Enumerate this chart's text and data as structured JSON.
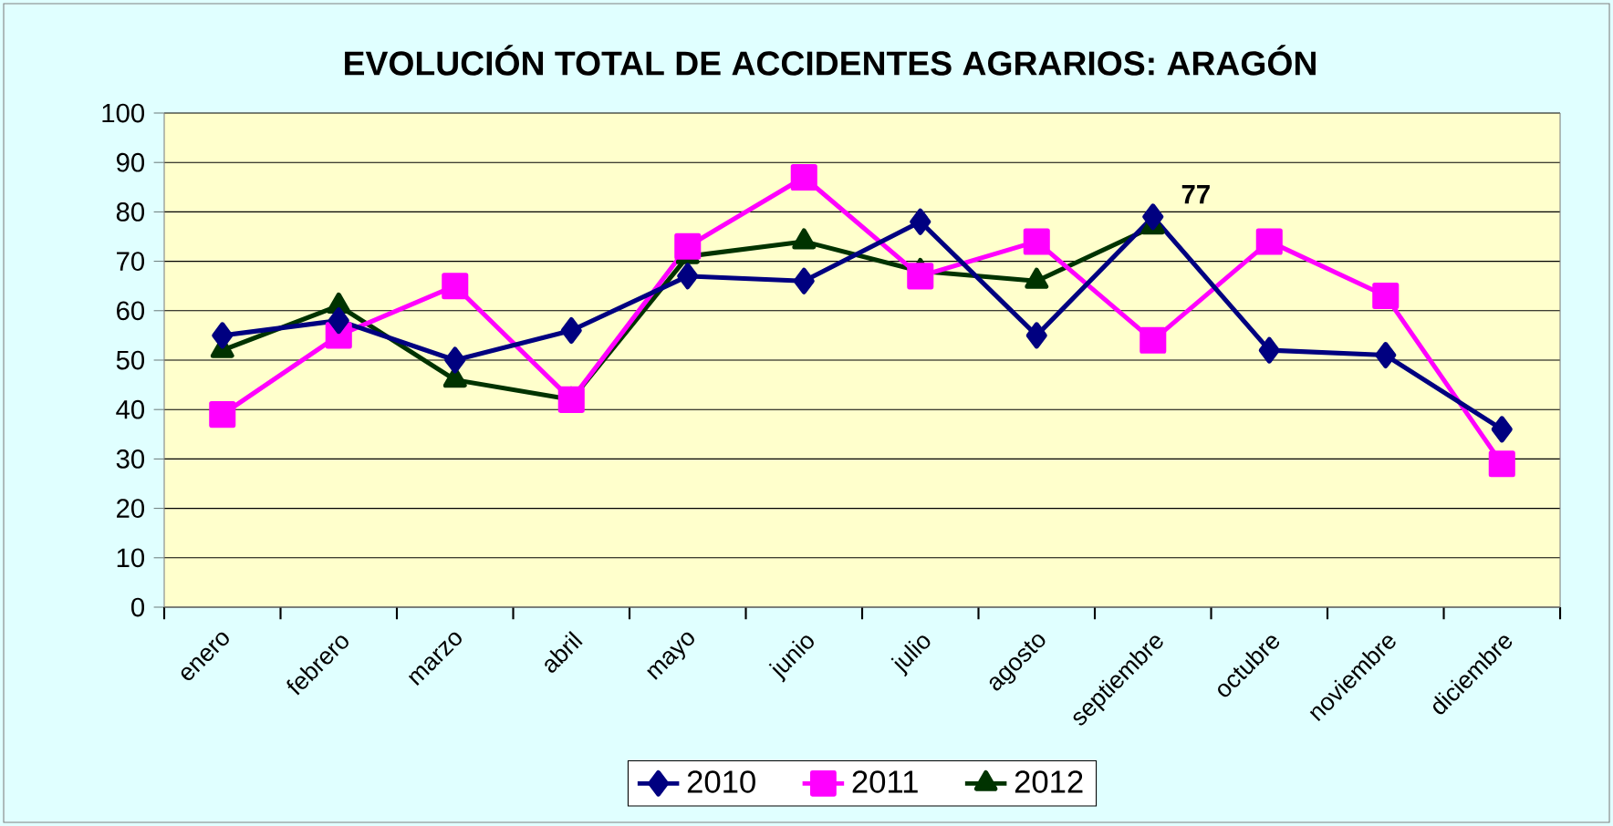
{
  "chart_data": {
    "type": "line",
    "title": "EVOLUCIÓN TOTAL DE ACCIDENTES AGRARIOS: ARAGÓN",
    "categories": [
      "enero",
      "febrero",
      "marzo",
      "abril",
      "mayo",
      "junio",
      "julio",
      "agosto",
      "septiembre",
      "octubre",
      "noviembre",
      "diciembre"
    ],
    "series": [
      {
        "name": "2010",
        "color": "#000080",
        "marker": "diamond",
        "values": [
          55,
          58,
          50,
          56,
          67,
          66,
          78,
          55,
          79,
          52,
          51,
          36
        ]
      },
      {
        "name": "2011",
        "color": "#ff00ff",
        "marker": "square",
        "values": [
          39,
          55,
          65,
          42,
          73,
          87,
          67,
          74,
          54,
          74,
          63,
          29
        ]
      },
      {
        "name": "2012",
        "color": "#003300",
        "marker": "triangle",
        "values": [
          52,
          61,
          46,
          42,
          71,
          74,
          68,
          66,
          77,
          null,
          null,
          null
        ]
      }
    ],
    "annotations": [
      {
        "text": "77",
        "x": "septiembre",
        "y": 77
      }
    ],
    "ylim": [
      0,
      100
    ],
    "yticks": [
      0,
      10,
      20,
      30,
      40,
      50,
      60,
      70,
      80,
      90,
      100
    ],
    "grid": "y",
    "legend": "bottom",
    "line_style": "solid"
  }
}
